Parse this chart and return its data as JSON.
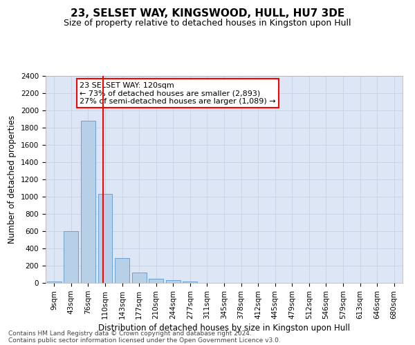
{
  "title": "23, SELSET WAY, KINGSWOOD, HULL, HU7 3DE",
  "subtitle": "Size of property relative to detached houses in Kingston upon Hull",
  "xlabel": "Distribution of detached houses by size in Kingston upon Hull",
  "ylabel": "Number of detached properties",
  "bin_labels": [
    "9sqm",
    "43sqm",
    "76sqm",
    "110sqm",
    "143sqm",
    "177sqm",
    "210sqm",
    "244sqm",
    "277sqm",
    "311sqm",
    "345sqm",
    "378sqm",
    "412sqm",
    "445sqm",
    "479sqm",
    "512sqm",
    "546sqm",
    "579sqm",
    "613sqm",
    "646sqm",
    "680sqm"
  ],
  "bar_heights": [
    20,
    600,
    1880,
    1030,
    290,
    120,
    50,
    30,
    20,
    0,
    0,
    0,
    0,
    0,
    0,
    0,
    0,
    0,
    0,
    0,
    0
  ],
  "bar_color": "#b8cfe8",
  "bar_edge_color": "#6aa0d0",
  "vline_x_index": 2.87,
  "vline_color": "red",
  "annotation_text": "23 SELSET WAY: 120sqm\n← 73% of detached houses are smaller (2,893)\n27% of semi-detached houses are larger (1,089) →",
  "annotation_box_color": "white",
  "annotation_box_edge": "red",
  "ylim": [
    0,
    2400
  ],
  "yticks": [
    0,
    200,
    400,
    600,
    800,
    1000,
    1200,
    1400,
    1600,
    1800,
    2000,
    2200,
    2400
  ],
  "grid_color": "#c8d4e8",
  "background_color": "#dce6f5",
  "footer_line1": "Contains HM Land Registry data © Crown copyright and database right 2024.",
  "footer_line2": "Contains public sector information licensed under the Open Government Licence v3.0.",
  "title_fontsize": 11,
  "subtitle_fontsize": 9,
  "xlabel_fontsize": 8.5,
  "ylabel_fontsize": 8.5,
  "footer_fontsize": 6.5,
  "tick_fontsize": 7.5,
  "annotation_fontsize": 8
}
